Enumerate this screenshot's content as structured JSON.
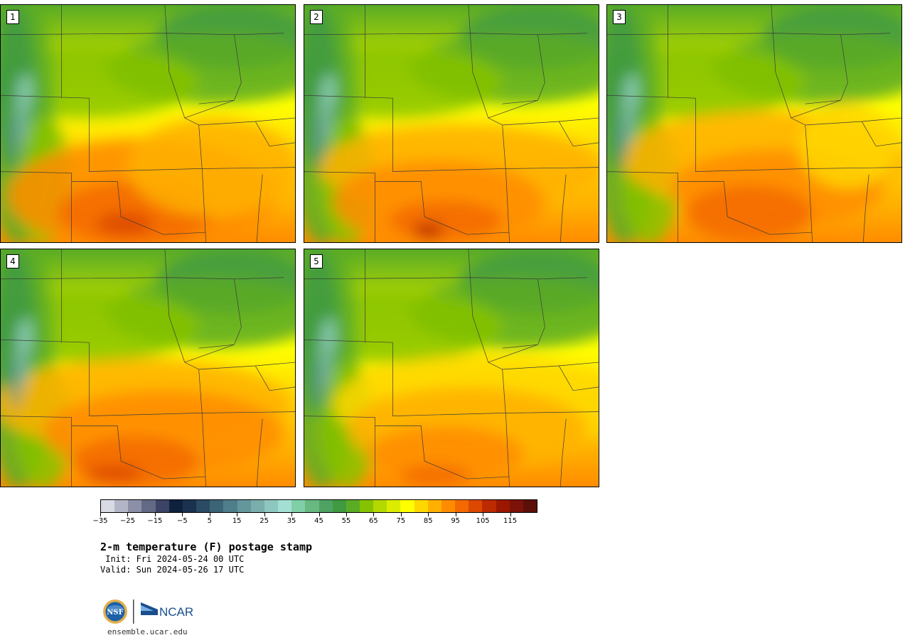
{
  "panels": [
    {
      "label": "1",
      "variant": 0
    },
    {
      "label": "2",
      "variant": 1
    },
    {
      "label": "3",
      "variant": 2
    },
    {
      "label": "4",
      "variant": 3
    },
    {
      "label": "5",
      "variant": 4
    }
  ],
  "colorbar": {
    "colors": [
      "#d9dbe4",
      "#b3b6c6",
      "#8b90a6",
      "#636a86",
      "#3b4466",
      "#10213d",
      "#1b3150",
      "#2b4a64",
      "#3c6477",
      "#4f7e8a",
      "#63979b",
      "#79aeac",
      "#8ec7bf",
      "#a3e0d3",
      "#7fcfa8",
      "#67b881",
      "#4fa263",
      "#3f9a42",
      "#5aac26",
      "#86c200",
      "#b4d800",
      "#dcec00",
      "#ffff00",
      "#ffd700",
      "#ffb000",
      "#ff8c00",
      "#f36a00",
      "#dc4800",
      "#bc2a00",
      "#9b1800",
      "#7d1208",
      "#5c0f08"
    ],
    "min": -35,
    "max": 125,
    "tick_values": [
      -35,
      -25,
      -15,
      -5,
      5,
      15,
      25,
      35,
      45,
      55,
      65,
      75,
      85,
      95,
      105,
      115
    ],
    "tick_labels": [
      "−35",
      "−25",
      "−15",
      "−5",
      "5",
      "15",
      "25",
      "35",
      "45",
      "55",
      "65",
      "75",
      "85",
      "95",
      "105",
      "115"
    ]
  },
  "title": "2-m temperature (F) postage stamp",
  "init": " Init: Fri 2024-05-24 00 UTC",
  "valid": "Valid: Sun 2024-05-26 17 UTC",
  "logos": {
    "nsf_text": "NSF",
    "ncar_text": "NCAR"
  },
  "website": "ensemble.ucar.edu"
}
